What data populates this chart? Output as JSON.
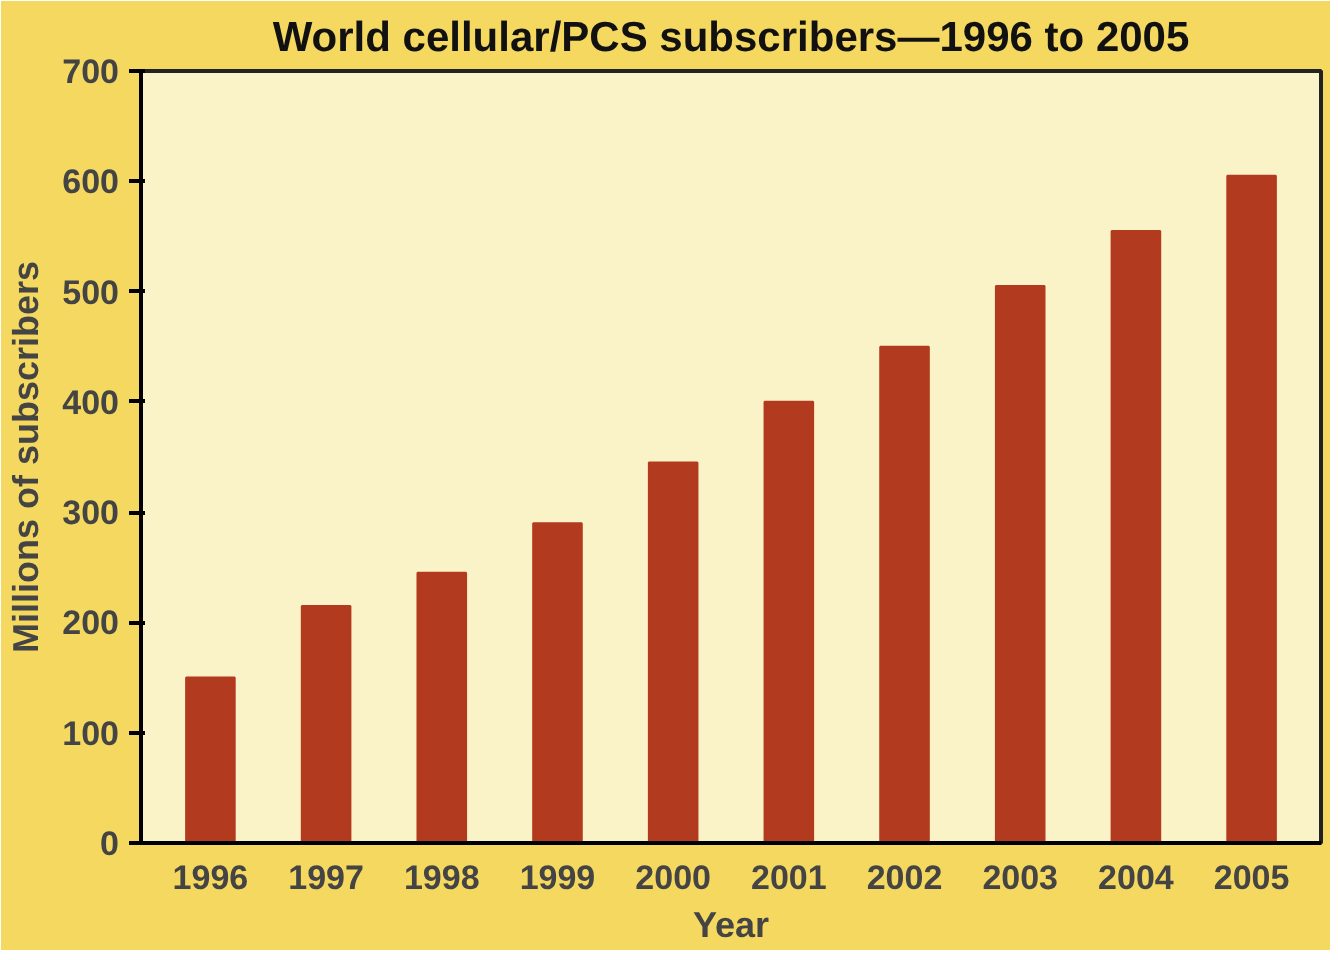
{
  "chart_data": {
    "type": "bar",
    "title": "World cellular/PCS subscribers—1996 to 2005",
    "xlabel": "Year",
    "ylabel": "Millions of subscribers",
    "categories": [
      "1996",
      "1997",
      "1998",
      "1999",
      "2000",
      "2001",
      "2002",
      "2003",
      "2004",
      "2005"
    ],
    "values": [
      150,
      215,
      245,
      290,
      345,
      400,
      450,
      505,
      555,
      605
    ],
    "color": "#b23a1e",
    "ylim": [
      0,
      700
    ],
    "yticks": [
      0,
      100,
      200,
      300,
      400,
      500,
      600,
      700
    ],
    "grid": false
  }
}
